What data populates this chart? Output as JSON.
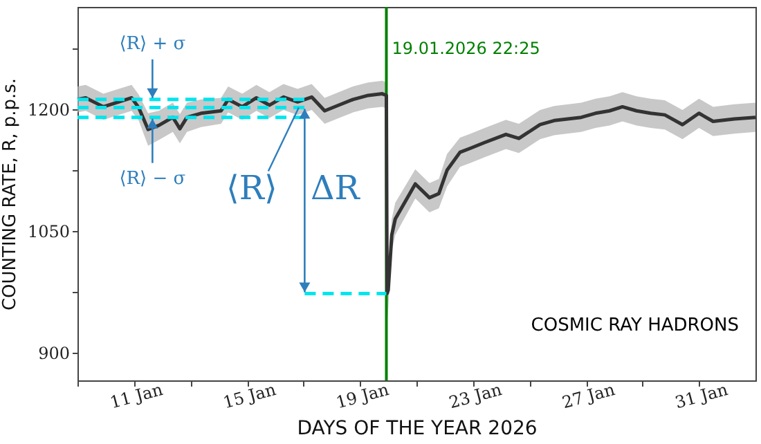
{
  "chart_data": {
    "type": "line",
    "xlabel": "DAYS OF THE YEAR 2026",
    "ylabel": "COUNTING RATE, R, p.p.s.",
    "xlim": [
      "2026-01-09",
      "2026-02-02"
    ],
    "xticks": [
      {
        "value": "2026-01-09",
        "label": null
      },
      {
        "value": "2026-01-11",
        "label": "11 Jan"
      },
      {
        "value": "2026-01-13",
        "label": null
      },
      {
        "value": "2026-01-15",
        "label": "15 Jan"
      },
      {
        "value": "2026-01-17",
        "label": null
      },
      {
        "value": "2026-01-19",
        "label": "19 Jan"
      },
      {
        "value": "2026-01-21",
        "label": null
      },
      {
        "value": "2026-01-23",
        "label": "23 Jan"
      },
      {
        "value": "2026-01-25",
        "label": null
      },
      {
        "value": "2026-01-27",
        "label": "27 Jan"
      },
      {
        "value": "2026-01-29",
        "label": null
      },
      {
        "value": "2026-01-31",
        "label": "31 Jan"
      }
    ],
    "ylim": [
      866,
      1326
    ],
    "yticks": [
      900,
      {
        "value": 975,
        "label": null
      },
      1050,
      {
        "value": 1125,
        "label": null
      },
      1200,
      {
        "value": 1275,
        "label": null
      }
    ],
    "grid": false,
    "marker": "none",
    "series": [
      {
        "color": "#333333",
        "line_style": "solid",
        "x": [
          "2026-01-09T00:00",
          "2026-01-09T07:00",
          "2026-01-09T22:00",
          "2026-01-10T11:00",
          "2026-01-10T22:00",
          "2026-01-11T04:00",
          "2026-01-11T12:00",
          "2026-01-11T21:00",
          "2026-01-12T09:00",
          "2026-01-12T15:00",
          "2026-01-12T21:00",
          "2026-01-13T09:00",
          "2026-01-14T02:00",
          "2026-01-14T08:00",
          "2026-01-14T20:00",
          "2026-01-15T08:00",
          "2026-01-15T19:00",
          "2026-01-16T07:00",
          "2026-01-16T19:00",
          "2026-01-17T07:00",
          "2026-01-17T18:00",
          "2026-01-18T06:00",
          "2026-01-18T18:00",
          "2026-01-19T07:00",
          "2026-01-19T19:00",
          "2026-01-19T22:25",
          "2026-01-19T23:00",
          "2026-01-20T00:00",
          "2026-01-20T03:00",
          "2026-01-20T06:00",
          "2026-01-20T23:00",
          "2026-01-21T11:00",
          "2026-01-21T19:00",
          "2026-01-22T02:00",
          "2026-01-22T13:00",
          "2026-01-22T22:00",
          "2026-01-23T10:00",
          "2026-01-24T04:00",
          "2026-01-24T15:00",
          "2026-01-25T09:00",
          "2026-01-25T21:00",
          "2026-01-26T20:00",
          "2026-01-27T08:00",
          "2026-01-27T20:00",
          "2026-01-28T07:00",
          "2026-01-28T19:00",
          "2026-01-29T07:00",
          "2026-01-29T19:00",
          "2026-01-30T10:00",
          "2026-01-31T00:00",
          "2026-01-31T12:00",
          "2026-02-01T06:00",
          "2026-02-02T00:00"
        ],
        "values": [
          1212,
          1214,
          1203,
          1209,
          1214,
          1202,
          1175,
          1180,
          1190,
          1176,
          1190,
          1195,
          1198,
          1212,
          1203,
          1214,
          1205,
          1215,
          1209,
          1215,
          1198,
          1205,
          1212,
          1217,
          1219,
          1217,
          973,
          977,
          1045,
          1065,
          1108,
          1091,
          1096,
          1125,
          1147,
          1152,
          1159,
          1169,
          1164,
          1181,
          1186,
          1190,
          1195,
          1198,
          1203,
          1198,
          1195,
          1193,
          1181,
          1195,
          1185,
          1188,
          1190
        ],
        "lower": [
          1196,
          1198,
          1187,
          1193,
          1198,
          1186,
          1155,
          1162,
          1172,
          1158,
          1172,
          1178,
          1182,
          1196,
          1187,
          1198,
          1189,
          1199,
          1193,
          1199,
          1182,
          1189,
          1196,
          1201,
          1203,
          1201,
          935,
          955,
          1025,
          1045,
          1090,
          1073,
          1078,
          1105,
          1129,
          1134,
          1141,
          1151,
          1146,
          1163,
          1168,
          1172,
          1177,
          1180,
          1185,
          1180,
          1177,
          1175,
          1163,
          1177,
          1167,
          1170,
          1172
        ],
        "upper": [
          1228,
          1230,
          1219,
          1225,
          1230,
          1218,
          1195,
          1198,
          1208,
          1194,
          1208,
          1212,
          1214,
          1228,
          1219,
          1230,
          1221,
          1231,
          1225,
          1231,
          1214,
          1221,
          1228,
          1233,
          1235,
          1233,
          1011,
          1000,
          1065,
          1085,
          1126,
          1109,
          1114,
          1145,
          1165,
          1170,
          1177,
          1187,
          1182,
          1199,
          1204,
          1208,
          1213,
          1216,
          1221,
          1216,
          1213,
          1211,
          1199,
          1213,
          1203,
          1206,
          1208
        ]
      },
      {
        "color": "#00e5ee",
        "line_style": "dashed",
        "x": [
          "2026-01-09T00:00",
          "2026-01-17T01:00"
        ],
        "values": [
          1202,
          1202
        ]
      },
      {
        "color": "#00e5ee",
        "line_style": "dashed",
        "x": [
          "2026-01-09T00:00",
          "2026-01-17T01:00"
        ],
        "values": [
          1212,
          1212
        ]
      },
      {
        "color": "#00e5ee",
        "line_style": "dashed",
        "x": [
          "2026-01-09T00:00",
          "2026-01-17T01:00"
        ],
        "values": [
          1190,
          1190
        ]
      },
      {
        "color": "#00e5ee",
        "line_style": "dashed",
        "x": [
          "2026-01-17T01:00",
          "2026-01-19T22:25"
        ],
        "values": [
          973,
          973
        ]
      }
    ],
    "ref_lines": [
      {
        "axis": "x",
        "value": "2026-01-19T22:25",
        "label": "19.01.2026 22:25",
        "color": "#008000"
      }
    ],
    "annotations": [
      "⟨R⟩ + σ",
      "⟨R⟩ − σ",
      {
        "text": "⟨R⟩",
        "x": "2026-01-16T20:00",
        "y": 1202
      },
      "ΔR",
      "COSMIC RAY HADRONS"
    ]
  }
}
